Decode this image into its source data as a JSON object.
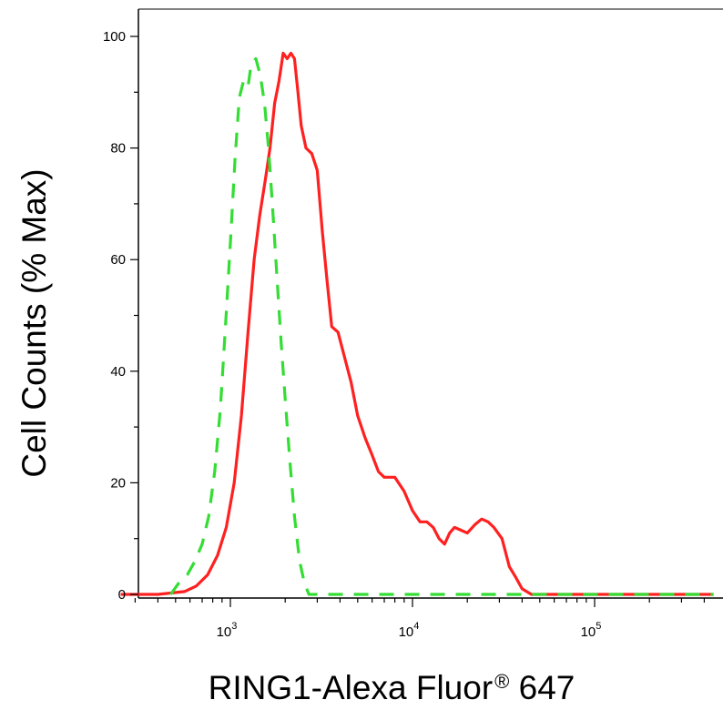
{
  "chart_data": {
    "type": "line",
    "title": "",
    "xlabel": "RING1-Alexa Fluor",
    "xlabel_mark": "®",
    "xlabel_suffix": " 647",
    "ylabel": "Cell Counts (% Max)",
    "x_scale": "log",
    "xlim": [
      250,
      450000
    ],
    "ylim": [
      0,
      105
    ],
    "y_ticks": [
      0,
      20,
      40,
      60,
      80,
      100
    ],
    "x_ticks": [
      {
        "value": 1000,
        "base": "10",
        "exp": "3"
      },
      {
        "value": 10000,
        "base": "10",
        "exp": "4"
      },
      {
        "value": 100000,
        "base": "10",
        "exp": "5"
      }
    ],
    "grid": false,
    "series": [
      {
        "color": "#ff2020",
        "style": "solid",
        "points": [
          [
            250,
            0
          ],
          [
            400,
            0
          ],
          [
            560,
            0.5
          ],
          [
            650,
            1.5
          ],
          [
            750,
            3.5
          ],
          [
            850,
            7
          ],
          [
            950,
            12
          ],
          [
            1050,
            20
          ],
          [
            1150,
            32
          ],
          [
            1250,
            47
          ],
          [
            1350,
            60
          ],
          [
            1450,
            68
          ],
          [
            1550,
            74
          ],
          [
            1650,
            80
          ],
          [
            1750,
            88
          ],
          [
            1850,
            92
          ],
          [
            1950,
            97
          ],
          [
            2050,
            96
          ],
          [
            2150,
            97
          ],
          [
            2250,
            96
          ],
          [
            2350,
            90
          ],
          [
            2450,
            84
          ],
          [
            2600,
            80
          ],
          [
            2800,
            79
          ],
          [
            3000,
            76
          ],
          [
            3200,
            65
          ],
          [
            3400,
            56
          ],
          [
            3600,
            48
          ],
          [
            3900,
            47
          ],
          [
            4200,
            43
          ],
          [
            4600,
            38
          ],
          [
            5000,
            32
          ],
          [
            5500,
            28
          ],
          [
            6000,
            25
          ],
          [
            6500,
            22
          ],
          [
            7000,
            21
          ],
          [
            8000,
            21
          ],
          [
            9000,
            18.5
          ],
          [
            10000,
            15
          ],
          [
            11000,
            13
          ],
          [
            12000,
            13
          ],
          [
            13000,
            12
          ],
          [
            14000,
            10
          ],
          [
            15000,
            9
          ],
          [
            16000,
            11
          ],
          [
            17000,
            12
          ],
          [
            18500,
            11.5
          ],
          [
            20000,
            11
          ],
          [
            22000,
            12.5
          ],
          [
            24000,
            13.5
          ],
          [
            26000,
            13
          ],
          [
            28000,
            12
          ],
          [
            31000,
            10
          ],
          [
            34000,
            5
          ],
          [
            37000,
            3
          ],
          [
            40000,
            1
          ],
          [
            45000,
            0
          ],
          [
            450000,
            0
          ]
        ]
      },
      {
        "color": "#33dd33",
        "style": "dashed",
        "points": [
          [
            470,
            0
          ],
          [
            520,
            2
          ],
          [
            580,
            3.5
          ],
          [
            640,
            6
          ],
          [
            700,
            9
          ],
          [
            760,
            14
          ],
          [
            820,
            22
          ],
          [
            880,
            33
          ],
          [
            940,
            48
          ],
          [
            1000,
            63
          ],
          [
            1060,
            78
          ],
          [
            1120,
            89
          ],
          [
            1180,
            92
          ],
          [
            1250,
            91
          ],
          [
            1300,
            95
          ],
          [
            1380,
            96
          ],
          [
            1460,
            93
          ],
          [
            1540,
            88
          ],
          [
            1620,
            80
          ],
          [
            1700,
            70
          ],
          [
            1800,
            57
          ],
          [
            1900,
            45
          ],
          [
            2000,
            35
          ],
          [
            2120,
            24
          ],
          [
            2250,
            14
          ],
          [
            2400,
            6
          ],
          [
            2550,
            2
          ],
          [
            2700,
            0
          ],
          [
            450000,
            0
          ]
        ]
      }
    ]
  }
}
